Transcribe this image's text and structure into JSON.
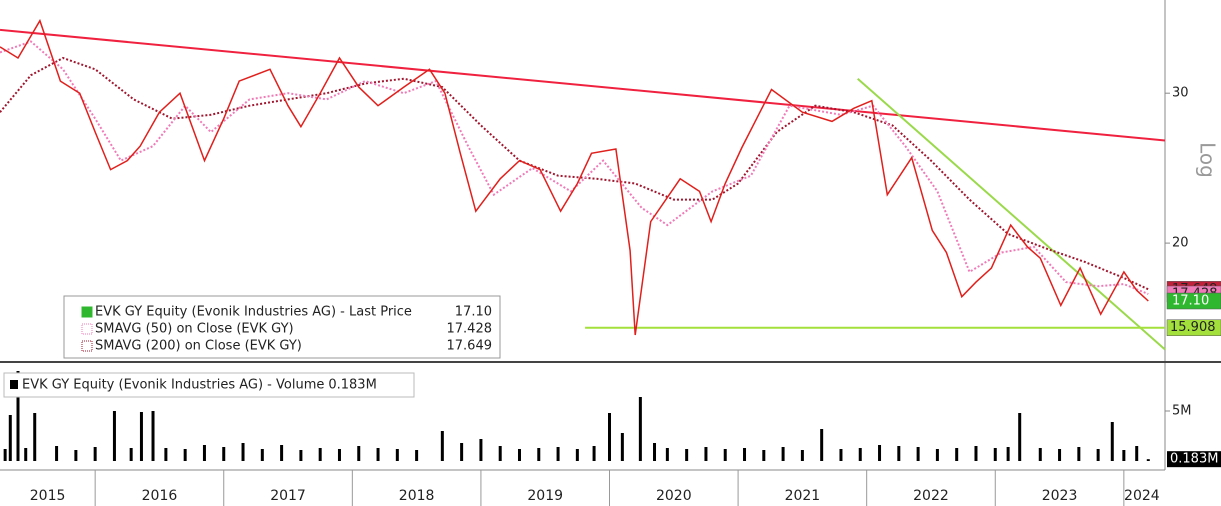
{
  "chart_data": [
    {
      "type": "line",
      "scale": "log",
      "scale_label": "Log",
      "xlim": [
        2015.26,
        2024.32
      ],
      "ylim": [
        14.5,
        38.6
      ],
      "yticks": [
        20,
        30
      ],
      "xticks": [
        2016,
        2017,
        2018,
        2019,
        2020,
        2021,
        2022,
        2023,
        2024
      ],
      "xtick_labels": [
        {
          "value": 2015.63,
          "label": "2015"
        },
        {
          "value": 2016.5,
          "label": "2016"
        },
        {
          "value": 2017.5,
          "label": "2017"
        },
        {
          "value": 2018.5,
          "label": "2018"
        },
        {
          "value": 2019.5,
          "label": "2019"
        },
        {
          "value": 2020.5,
          "label": "2020"
        },
        {
          "value": 2021.5,
          "label": "2021"
        },
        {
          "value": 2022.5,
          "label": "2022"
        },
        {
          "value": 2023.5,
          "label": "2023"
        },
        {
          "value": 2024.14,
          "label": "2024"
        }
      ],
      "series": [
        {
          "name": "EVK GY Equity (Evonik Industries AG) - Last Price",
          "color": "#e0201c",
          "legend_color": "#2fb82f",
          "badge_color": "#2fb82f",
          "style": "solid",
          "last_value": 17.1,
          "last_value_label": "17.10",
          "x": [
            2015.26,
            2015.4,
            2015.57,
            2015.73,
            2015.88,
            2016.0,
            2016.12,
            2016.25,
            2016.35,
            2016.5,
            2016.66,
            2016.85,
            2017.0,
            2017.12,
            2017.36,
            2017.5,
            2017.6,
            2017.75,
            2017.9,
            2018.05,
            2018.2,
            2018.4,
            2018.6,
            2018.72,
            2018.84,
            2018.96,
            2019.15,
            2019.3,
            2019.46,
            2019.62,
            2019.75,
            2019.86,
            2020.05,
            2020.16,
            2020.2,
            2020.32,
            2020.55,
            2020.7,
            2020.79,
            2020.9,
            2021.03,
            2021.26,
            2021.5,
            2021.73,
            2021.9,
            2022.04,
            2022.16,
            2022.35,
            2022.51,
            2022.62,
            2022.74,
            2022.85,
            2022.97,
            2023.12,
            2023.25,
            2023.35,
            2023.51,
            2023.66,
            2023.82,
            2024.0,
            2024.1,
            2024.19
          ],
          "values": [
            34.0,
            33.0,
            36.5,
            31.0,
            30.0,
            27.0,
            24.4,
            25.0,
            26.0,
            28.5,
            30.0,
            25.0,
            28.0,
            31.0,
            32.0,
            29.0,
            27.4,
            30.0,
            33.0,
            30.5,
            29.0,
            30.5,
            32.0,
            30.0,
            25.5,
            21.8,
            23.8,
            25.0,
            24.4,
            21.8,
            23.5,
            25.5,
            25.8,
            19.6,
            15.6,
            21.2,
            23.8,
            23.0,
            21.2,
            23.5,
            25.9,
            30.3,
            28.5,
            27.8,
            28.8,
            29.4,
            22.8,
            25.2,
            20.7,
            19.5,
            17.3,
            18.0,
            18.7,
            21.0,
            19.8,
            19.2,
            16.9,
            18.7,
            16.5,
            18.5,
            17.6,
            17.1
          ]
        },
        {
          "name": "SMAVG (50)  on Close (EVK GY)",
          "color": "#f07ab8",
          "legend_color": "#f07ab8",
          "badge_color": "#f07ab8",
          "style": "dotted",
          "last_value": 17.428,
          "x": [
            2015.26,
            2015.5,
            2015.75,
            2016.0,
            2016.2,
            2016.45,
            2016.7,
            2016.9,
            2017.2,
            2017.5,
            2017.8,
            2018.1,
            2018.4,
            2018.65,
            2018.9,
            2019.1,
            2019.4,
            2019.7,
            2019.95,
            2020.25,
            2020.45,
            2020.8,
            2021.1,
            2021.4,
            2021.8,
            2022.05,
            2022.3,
            2022.55,
            2022.8,
            2023.05,
            2023.3,
            2023.55,
            2023.8,
            2024.0,
            2024.19
          ],
          "values": [
            33.5,
            34.5,
            32.0,
            28.0,
            25.0,
            26.0,
            29.0,
            27.0,
            29.5,
            30.0,
            29.5,
            31.0,
            30.0,
            31.0,
            26.0,
            22.8,
            24.5,
            23.0,
            25.0,
            22.0,
            21.0,
            23.0,
            24.0,
            29.0,
            28.3,
            29.0,
            26.0,
            23.0,
            18.5,
            19.5,
            19.8,
            18.0,
            17.8,
            17.9,
            17.428
          ]
        },
        {
          "name": "SMAVG (200)  on Close (EVK GY)",
          "color": "#a0162e",
          "legend_color": "#a0162e",
          "badge_color": "#c0203a",
          "style": "dotted",
          "last_value": 17.649,
          "x": [
            2015.26,
            2015.5,
            2015.75,
            2016.0,
            2016.3,
            2016.6,
            2016.9,
            2017.2,
            2017.5,
            2017.8,
            2018.1,
            2018.4,
            2018.7,
            2019.0,
            2019.3,
            2019.6,
            2019.9,
            2020.2,
            2020.5,
            2020.8,
            2021.0,
            2021.3,
            2021.6,
            2021.9,
            2022.2,
            2022.5,
            2022.8,
            2023.1,
            2023.4,
            2023.7,
            2024.0,
            2024.19
          ],
          "values": [
            28.5,
            31.5,
            33.0,
            32.0,
            29.5,
            28.0,
            28.3,
            29.0,
            29.5,
            30.0,
            30.8,
            31.2,
            30.5,
            27.5,
            25.0,
            24.0,
            23.8,
            23.5,
            22.5,
            22.5,
            23.5,
            27.0,
            29.0,
            28.5,
            27.5,
            25.0,
            22.5,
            20.5,
            19.7,
            19.0,
            18.2,
            17.649
          ]
        }
      ],
      "trendlines": [
        {
          "color": "#f0213f",
          "x": [
            2015.26,
            2024.32
          ],
          "values": [
            35.6,
            26.4
          ]
        },
        {
          "color": "#9ad94a",
          "x": [
            2021.93,
            2024.32
          ],
          "values": [
            31.2,
            15.0
          ]
        },
        {
          "color": "#a3e03c",
          "x": [
            2019.81,
            2024.32
          ],
          "values": [
            15.908,
            15.908
          ],
          "badge": true
        }
      ]
    },
    {
      "type": "bar",
      "ylim": [
        0,
        9.6
      ],
      "yticks": [
        {
          "value": 5,
          "label": "5M"
        }
      ],
      "series": [
        {
          "name": "EVK GY Equity (Evonik Industries AG) - Volume",
          "color": "#000000",
          "last_value": 0.183,
          "last_value_label": "0.183M",
          "x": [
            2015.3,
            2015.34,
            2015.4,
            2015.46,
            2015.53,
            2015.7,
            2015.85,
            2016.0,
            2016.15,
            2016.28,
            2016.36,
            2016.45,
            2016.55,
            2016.7,
            2016.85,
            2017.0,
            2017.15,
            2017.3,
            2017.45,
            2017.6,
            2017.75,
            2017.9,
            2018.05,
            2018.2,
            2018.35,
            2018.5,
            2018.7,
            2018.85,
            2019.0,
            2019.15,
            2019.3,
            2019.45,
            2019.6,
            2019.75,
            2019.88,
            2020.0,
            2020.1,
            2020.24,
            2020.35,
            2020.45,
            2020.6,
            2020.75,
            2020.9,
            2021.05,
            2021.2,
            2021.35,
            2021.5,
            2021.65,
            2021.8,
            2021.95,
            2022.1,
            2022.25,
            2022.4,
            2022.55,
            2022.7,
            2022.85,
            2023.0,
            2023.1,
            2023.19,
            2023.35,
            2023.5,
            2023.65,
            2023.8,
            2023.91,
            2024.0,
            2024.1,
            2024.19
          ],
          "values": [
            1.2,
            4.6,
            9.0,
            1.3,
            4.8,
            1.5,
            1.1,
            1.4,
            5.0,
            1.3,
            4.9,
            5.0,
            1.3,
            1.2,
            1.6,
            1.4,
            1.8,
            1.2,
            1.6,
            1.1,
            1.3,
            1.2,
            1.5,
            1.3,
            1.2,
            1.1,
            3.0,
            1.8,
            2.2,
            1.5,
            1.2,
            1.3,
            1.4,
            1.2,
            1.5,
            4.8,
            2.8,
            6.4,
            1.8,
            1.3,
            1.2,
            1.4,
            1.2,
            1.3,
            1.1,
            1.4,
            1.1,
            3.2,
            1.2,
            1.3,
            1.6,
            1.5,
            1.4,
            1.2,
            1.3,
            1.5,
            1.3,
            1.4,
            4.8,
            1.3,
            1.2,
            1.4,
            1.2,
            3.9,
            1.1,
            1.5,
            0.183
          ]
        }
      ]
    }
  ]
}
